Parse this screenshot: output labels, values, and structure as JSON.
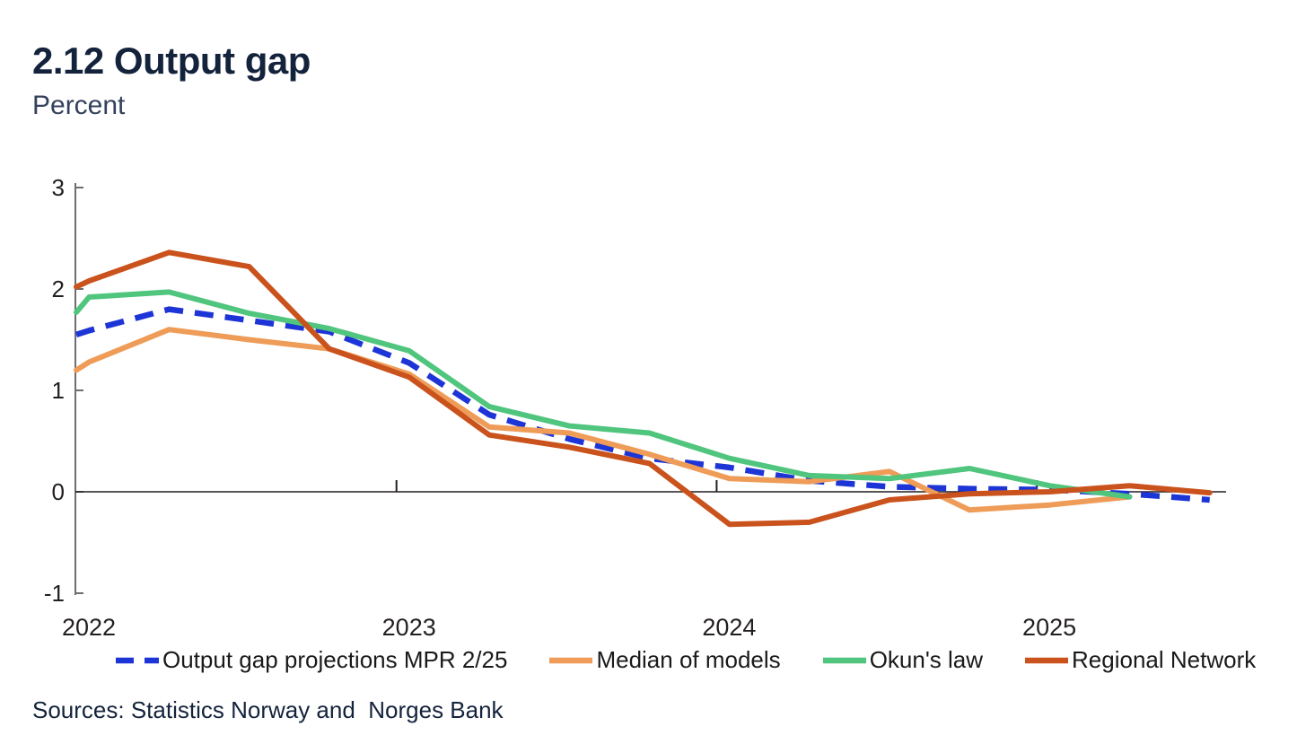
{
  "header": {
    "title": "2.12 Output gap",
    "subtitle": "Percent"
  },
  "footer": {
    "sources": "Sources: Statistics Norway and  Norges Bank"
  },
  "chart_data": {
    "type": "line",
    "title": "2.12 Output gap",
    "ylabel": "Percent",
    "x_unit": "year (quarterly data points)",
    "x_range": [
      2022.0,
      2025.6
    ],
    "ylim": [
      -1,
      3
    ],
    "yticks": [
      3,
      2,
      1,
      0,
      -1
    ],
    "xticks": [
      {
        "t": 2022,
        "label": "2022",
        "tick": false
      },
      {
        "t": 2023,
        "label": "2023",
        "tick": true
      },
      {
        "t": 2024,
        "label": "2024",
        "tick": true
      },
      {
        "t": 2025,
        "label": "2025",
        "tick": true
      }
    ],
    "zero_line": true,
    "grid": false,
    "legend_position": "bottom",
    "axis_color": "#6d6e71",
    "tick_label_color": "#231f20",
    "zero_line_color": "#231f20",
    "series": [
      {
        "name": "Output gap projections MPR 2/25",
        "color": "#1d35d6",
        "dashed": true,
        "points": [
          [
            2022.0,
            1.55
          ],
          [
            2022.04,
            1.59
          ],
          [
            2022.29,
            1.8
          ],
          [
            2022.54,
            1.69
          ],
          [
            2022.79,
            1.58
          ],
          [
            2023.04,
            1.27
          ],
          [
            2023.29,
            0.76
          ],
          [
            2023.54,
            0.52
          ],
          [
            2023.79,
            0.33
          ],
          [
            2024.04,
            0.24
          ],
          [
            2024.29,
            0.11
          ],
          [
            2024.54,
            0.05
          ],
          [
            2024.79,
            0.03
          ],
          [
            2025.04,
            0.02
          ],
          [
            2025.29,
            -0.02
          ],
          [
            2025.54,
            -0.08
          ]
        ]
      },
      {
        "name": "Median of models",
        "color": "#ee9c57",
        "dashed": false,
        "points": [
          [
            2022.0,
            1.2
          ],
          [
            2022.04,
            1.28
          ],
          [
            2022.29,
            1.6
          ],
          [
            2022.54,
            1.5
          ],
          [
            2022.79,
            1.41
          ],
          [
            2023.04,
            1.16
          ],
          [
            2023.29,
            0.64
          ],
          [
            2023.54,
            0.58
          ],
          [
            2023.79,
            0.37
          ],
          [
            2024.04,
            0.13
          ],
          [
            2024.29,
            0.1
          ],
          [
            2024.54,
            0.2
          ],
          [
            2024.79,
            -0.18
          ],
          [
            2025.04,
            -0.13
          ],
          [
            2025.29,
            -0.05
          ]
        ]
      },
      {
        "name": "Okun's law",
        "color": "#50c57d",
        "dashed": false,
        "points": [
          [
            2022.0,
            1.77
          ],
          [
            2022.04,
            1.92
          ],
          [
            2022.29,
            1.97
          ],
          [
            2022.54,
            1.76
          ],
          [
            2022.79,
            1.61
          ],
          [
            2023.04,
            1.39
          ],
          [
            2023.29,
            0.84
          ],
          [
            2023.54,
            0.65
          ],
          [
            2023.79,
            0.58
          ],
          [
            2024.04,
            0.33
          ],
          [
            2024.29,
            0.16
          ],
          [
            2024.54,
            0.13
          ],
          [
            2024.79,
            0.23
          ],
          [
            2025.04,
            0.06
          ],
          [
            2025.29,
            -0.05
          ]
        ]
      },
      {
        "name": "Regional Network",
        "color": "#ca521c",
        "dashed": false,
        "points": [
          [
            2022.0,
            2.02
          ],
          [
            2022.04,
            2.08
          ],
          [
            2022.29,
            2.36
          ],
          [
            2022.54,
            2.22
          ],
          [
            2022.79,
            1.41
          ],
          [
            2023.04,
            1.13
          ],
          [
            2023.29,
            0.56
          ],
          [
            2023.54,
            0.44
          ],
          [
            2023.79,
            0.28
          ],
          [
            2024.04,
            -0.32
          ],
          [
            2024.29,
            -0.3
          ],
          [
            2024.54,
            -0.08
          ],
          [
            2024.79,
            -0.02
          ],
          [
            2025.04,
            0.0
          ],
          [
            2025.29,
            0.06
          ],
          [
            2025.54,
            -0.01
          ]
        ]
      }
    ]
  }
}
